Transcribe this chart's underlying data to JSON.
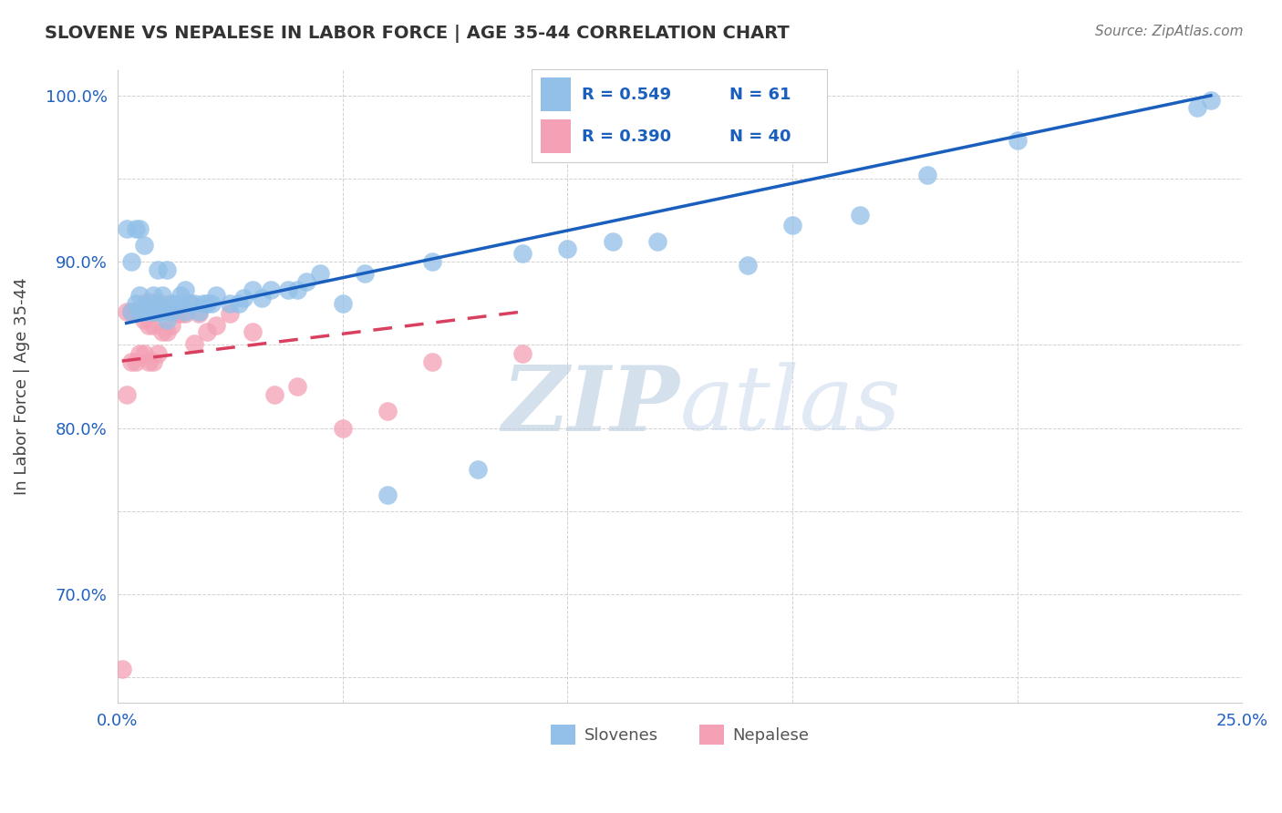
{
  "title": "SLOVENE VS NEPALESE IN LABOR FORCE | AGE 35-44 CORRELATION CHART",
  "source_text": "Source: ZipAtlas.com",
  "ylabel": "In Labor Force | Age 35-44",
  "xlim": [
    0.0,
    0.25
  ],
  "ylim": [
    0.635,
    1.015
  ],
  "legend_R_blue": "0.549",
  "legend_N_blue": "61",
  "legend_R_pink": "0.390",
  "legend_N_pink": "40",
  "blue_color": "#92C0E8",
  "pink_color": "#F4A0B5",
  "line_blue_color": "#1A5FBE",
  "line_pink_color": "#D94060",
  "watermark_color": "#C8D8F0",
  "slovene_x": [
    0.002,
    0.003,
    0.003,
    0.004,
    0.004,
    0.005,
    0.005,
    0.005,
    0.006,
    0.006,
    0.007,
    0.007,
    0.008,
    0.008,
    0.009,
    0.009,
    0.009,
    0.01,
    0.01,
    0.011,
    0.011,
    0.012,
    0.012,
    0.013,
    0.014,
    0.014,
    0.015,
    0.015,
    0.016,
    0.017,
    0.018,
    0.019,
    0.02,
    0.021,
    0.022,
    0.025,
    0.027,
    0.028,
    0.03,
    0.032,
    0.034,
    0.038,
    0.04,
    0.042,
    0.045,
    0.05,
    0.055,
    0.06,
    0.07,
    0.08,
    0.09,
    0.1,
    0.11,
    0.12,
    0.14,
    0.15,
    0.165,
    0.18,
    0.2,
    0.24,
    0.243
  ],
  "slovene_y": [
    0.92,
    0.87,
    0.9,
    0.875,
    0.92,
    0.87,
    0.88,
    0.92,
    0.87,
    0.91,
    0.87,
    0.875,
    0.87,
    0.88,
    0.87,
    0.875,
    0.895,
    0.87,
    0.88,
    0.865,
    0.895,
    0.875,
    0.87,
    0.875,
    0.875,
    0.88,
    0.87,
    0.883,
    0.875,
    0.875,
    0.87,
    0.875,
    0.875,
    0.875,
    0.88,
    0.875,
    0.875,
    0.878,
    0.883,
    0.878,
    0.883,
    0.883,
    0.883,
    0.888,
    0.893,
    0.875,
    0.893,
    0.76,
    0.9,
    0.775,
    0.905,
    0.908,
    0.912,
    0.912,
    0.898,
    0.922,
    0.928,
    0.952,
    0.973,
    0.993,
    0.997
  ],
  "nepalese_x": [
    0.001,
    0.002,
    0.002,
    0.003,
    0.003,
    0.003,
    0.004,
    0.004,
    0.004,
    0.005,
    0.005,
    0.006,
    0.006,
    0.006,
    0.007,
    0.007,
    0.007,
    0.008,
    0.008,
    0.009,
    0.01,
    0.01,
    0.011,
    0.012,
    0.013,
    0.014,
    0.015,
    0.016,
    0.017,
    0.018,
    0.02,
    0.022,
    0.025,
    0.03,
    0.035,
    0.04,
    0.05,
    0.06,
    0.07,
    0.09
  ],
  "nepalese_y": [
    0.655,
    0.82,
    0.87,
    0.84,
    0.87,
    0.87,
    0.84,
    0.87,
    0.87,
    0.845,
    0.87,
    0.845,
    0.865,
    0.875,
    0.84,
    0.862,
    0.876,
    0.84,
    0.862,
    0.845,
    0.858,
    0.875,
    0.858,
    0.862,
    0.869,
    0.869,
    0.869,
    0.875,
    0.851,
    0.869,
    0.858,
    0.862,
    0.869,
    0.858,
    0.82,
    0.825,
    0.8,
    0.81,
    0.84,
    0.845
  ],
  "figsize": [
    14.06,
    8.92
  ],
  "dpi": 100
}
